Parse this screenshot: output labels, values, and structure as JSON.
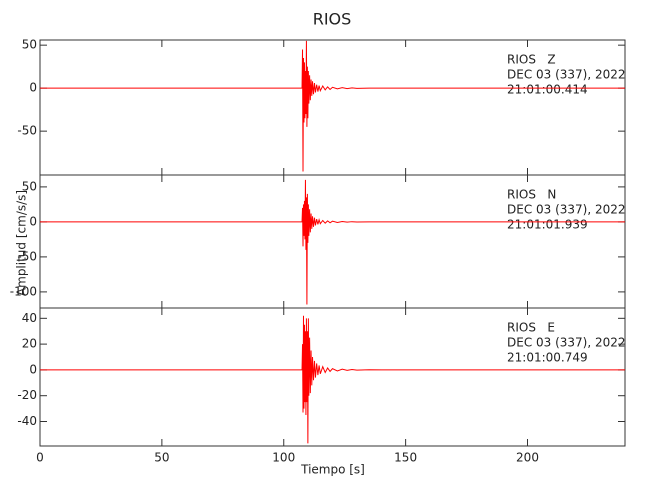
{
  "chart_data": [
    {
      "type": "line",
      "title": "RIOS",
      "annotations": [
        "RIOS   Z",
        "DEC 03 (337), 2022",
        "21:01:00.414"
      ],
      "xlim": [
        0,
        240
      ],
      "ylim": [
        -101,
        56
      ],
      "yticks": [
        50,
        0,
        -50
      ],
      "series": [
        {
          "color": "#ff0000",
          "x": [
            0,
            107.5,
            107.7,
            107.9,
            108.1,
            108.3,
            108.5,
            108.7,
            108.9,
            109.1,
            109.3,
            109.5,
            109.7,
            109.9,
            110.1,
            110.3,
            110.6,
            110.9,
            111.2,
            111.5,
            111.8,
            112.2,
            112.6,
            113,
            113.5,
            114,
            114.5,
            115,
            116,
            117,
            118,
            119,
            120,
            122,
            124,
            126,
            128,
            130,
            135,
            140,
            240
          ],
          "values": [
            0,
            0,
            45,
            -97,
            35,
            -40,
            30,
            -35,
            20,
            -30,
            55,
            -45,
            25,
            -35,
            20,
            -18,
            15,
            -14,
            10,
            -9,
            8,
            -7,
            6,
            -5,
            4,
            -4,
            3,
            -3,
            2.5,
            -2,
            1.5,
            -1.5,
            1,
            -0.8,
            0.6,
            -0.5,
            0.3,
            -0.2,
            0.1,
            0,
            0
          ]
        }
      ]
    },
    {
      "type": "line",
      "ylabel": "Amplitud [cm/s/s]",
      "annotations": [
        "RIOS   N",
        "DEC 03 (337), 2022",
        "21:01:01.939"
      ],
      "xlim": [
        0,
        240
      ],
      "ylim": [
        -123,
        67
      ],
      "yticks": [
        50,
        0,
        -50,
        -100
      ],
      "series": [
        {
          "color": "#ff0000",
          "x": [
            0,
            107.5,
            107.7,
            107.9,
            108.1,
            108.3,
            108.5,
            108.7,
            108.9,
            109.1,
            109.3,
            109.5,
            109.7,
            109.9,
            110.1,
            110.3,
            110.6,
            110.9,
            111.2,
            111.5,
            111.8,
            112.2,
            112.6,
            113,
            113.5,
            114,
            114.5,
            115,
            116,
            117,
            118,
            119,
            120,
            122,
            124,
            126,
            128,
            130,
            135,
            140,
            240
          ],
          "values": [
            0,
            0,
            20,
            -35,
            25,
            -20,
            30,
            -25,
            60,
            -40,
            35,
            -118,
            40,
            -30,
            25,
            -20,
            18,
            -15,
            12,
            -10,
            8,
            -7,
            6,
            -5,
            4,
            -3.5,
            3,
            -2.5,
            2,
            -1.8,
            1.5,
            -1.2,
            1,
            -0.8,
            0.6,
            -0.4,
            0.3,
            -0.2,
            0.1,
            0,
            0
          ]
        }
      ]
    },
    {
      "type": "line",
      "xlabel": "Tiempo [s]",
      "annotations": [
        "RIOS   E",
        "DEC 03 (337), 2022",
        "21:01:00.749"
      ],
      "xlim": [
        0,
        240
      ],
      "xticks": [
        0,
        50,
        100,
        150,
        200
      ],
      "ylim": [
        -59,
        48
      ],
      "yticks": [
        40,
        20,
        0,
        -20,
        -40
      ],
      "series": [
        {
          "color": "#ff0000",
          "x": [
            0,
            107.5,
            107.7,
            107.9,
            108.1,
            108.3,
            108.5,
            108.7,
            108.9,
            109.1,
            109.3,
            109.5,
            109.7,
            109.9,
            110.1,
            110.3,
            110.6,
            110.9,
            111.2,
            111.5,
            111.8,
            112.2,
            112.6,
            113,
            113.5,
            114,
            114.5,
            115,
            116,
            117,
            118,
            119,
            120,
            122,
            124,
            126,
            128,
            130,
            135,
            140,
            240
          ],
          "values": [
            0,
            0,
            20,
            -33,
            42,
            -30,
            35,
            -25,
            30,
            -35,
            40,
            -25,
            30,
            -57,
            40,
            -20,
            25,
            -18,
            15,
            -12,
            10,
            -8,
            7,
            -6,
            5,
            -4,
            3.5,
            -3,
            2.5,
            -2,
            1.5,
            -1.2,
            1,
            -0.8,
            0.6,
            -0.4,
            0.3,
            -0.2,
            0.1,
            0,
            0
          ]
        }
      ]
    }
  ]
}
